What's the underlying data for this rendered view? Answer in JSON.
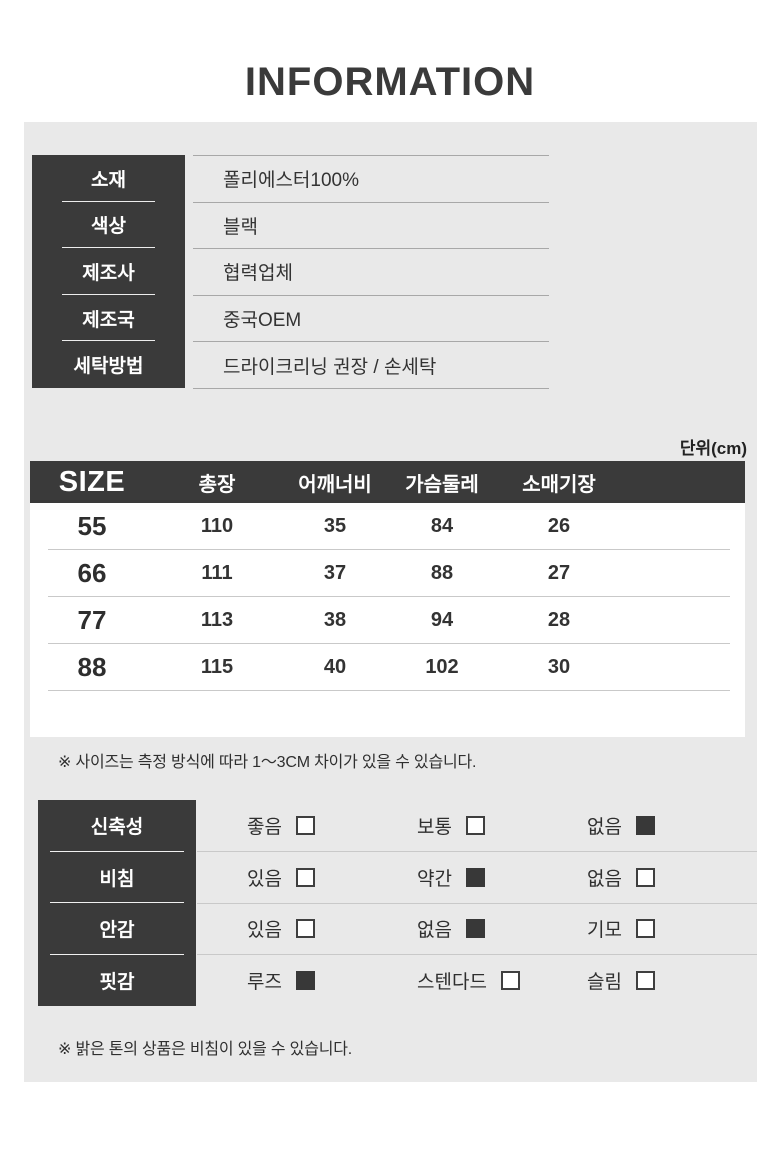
{
  "title": "INFORMATION",
  "unit_label": "단위(cm)",
  "info_table": {
    "rows": [
      {
        "label": "소재",
        "value": "폴리에스터100%"
      },
      {
        "label": "색상",
        "value": "블랙"
      },
      {
        "label": "제조사",
        "value": "협력업체"
      },
      {
        "label": "제조국",
        "value": "중국OEM"
      },
      {
        "label": "세탁방법",
        "value": "드라이크리닝 권장 / 손세탁"
      }
    ]
  },
  "size_table": {
    "headers": {
      "size": "SIZE",
      "total_length": "총장",
      "shoulder": "어깨너비",
      "chest": "가슴둘레",
      "sleeve": "소매기장"
    },
    "rows": [
      {
        "size": "55",
        "total_length": "110",
        "shoulder": "35",
        "chest": "84",
        "sleeve": "26"
      },
      {
        "size": "66",
        "total_length": "111",
        "shoulder": "37",
        "chest": "88",
        "sleeve": "27"
      },
      {
        "size": "77",
        "total_length": "113",
        "shoulder": "38",
        "chest": "94",
        "sleeve": "28"
      },
      {
        "size": "88",
        "total_length": "115",
        "shoulder": "40",
        "chest": "102",
        "sleeve": "30"
      }
    ]
  },
  "size_note": "※ 사이즈는 측정 방식에 따라 1～3CM 차이가 있을 수 있습니다.",
  "attributes_table": {
    "rows": [
      {
        "label": "신축성",
        "options": [
          {
            "text": "좋음",
            "checked": false
          },
          {
            "text": "보통",
            "checked": false
          },
          {
            "text": "없음",
            "checked": true
          }
        ]
      },
      {
        "label": "비침",
        "options": [
          {
            "text": "있음",
            "checked": false
          },
          {
            "text": "약간",
            "checked": true
          },
          {
            "text": "없음",
            "checked": false
          }
        ]
      },
      {
        "label": "안감",
        "options": [
          {
            "text": "있음",
            "checked": false
          },
          {
            "text": "없음",
            "checked": true
          },
          {
            "text": "기모",
            "checked": false
          }
        ]
      },
      {
        "label": "핏감",
        "options": [
          {
            "text": "루즈",
            "checked": true
          },
          {
            "text": "스텐다드",
            "checked": false
          },
          {
            "text": "슬림",
            "checked": false
          }
        ]
      }
    ]
  },
  "bottom_note": "※ 밝은 톤의 상품은 비침이 있을 수 있습니다.",
  "colors": {
    "panel_bg": "#e9e9e9",
    "dark_box": "#3a3a3a",
    "text": "#333333",
    "line_strong": "#a8a8a8",
    "line_light": "#c9c9c9",
    "checked_fill": "#383838",
    "white": "#ffffff"
  }
}
